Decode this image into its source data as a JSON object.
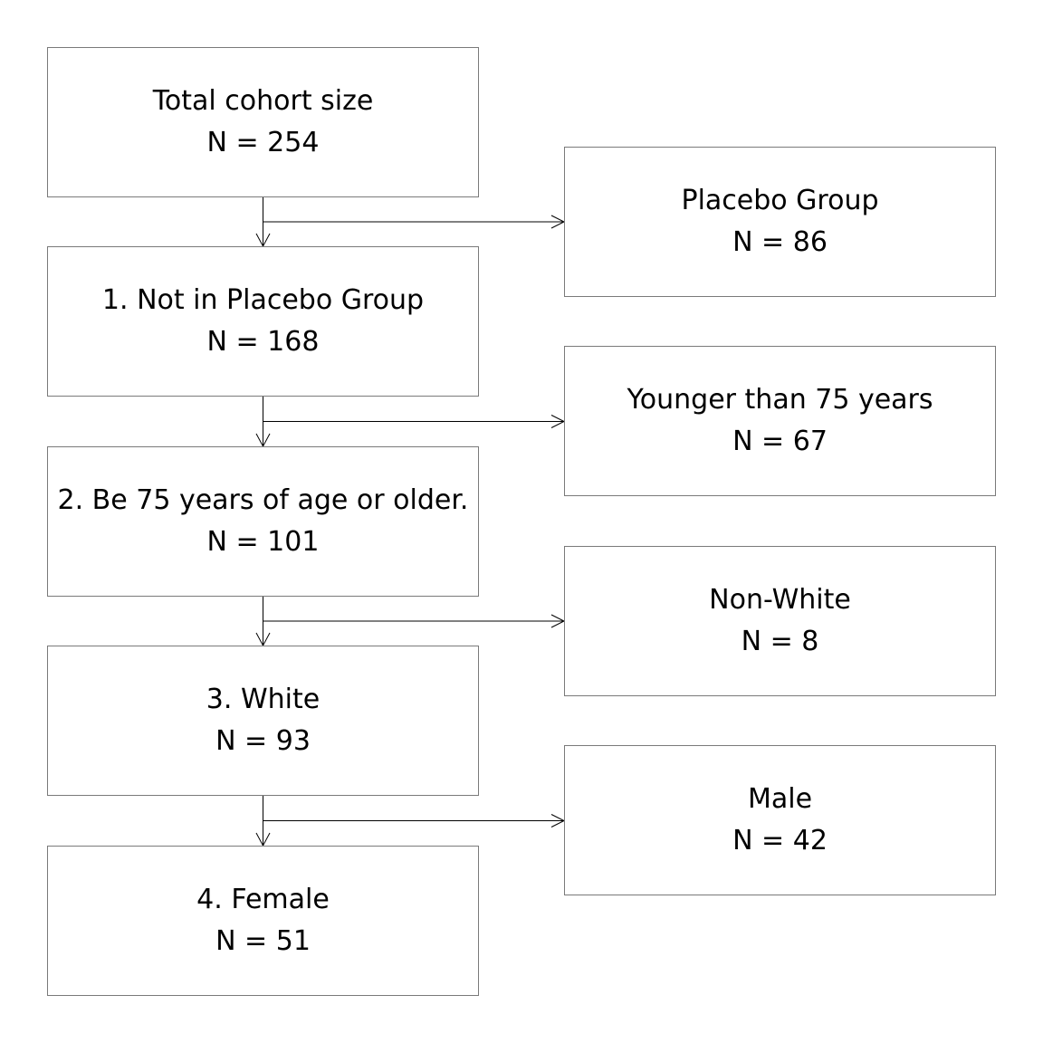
{
  "flowchart": {
    "main_steps": [
      {
        "label": "Total cohort size",
        "count": "N = 254"
      },
      {
        "label": "1. Not in Placebo Group",
        "count": "N = 168"
      },
      {
        "label": "2. Be 75 years of age or older.",
        "count": "N = 101"
      },
      {
        "label": "3. White",
        "count": "N = 93"
      },
      {
        "label": "4. Female",
        "count": "N = 51"
      }
    ],
    "excluded": [
      {
        "label": "Placebo Group",
        "count": "N = 86"
      },
      {
        "label": "Younger than 75 years",
        "count": "N = 67"
      },
      {
        "label": "Non-White",
        "count": "N = 8"
      },
      {
        "label": "Male",
        "count": "N = 42"
      }
    ],
    "colors": {
      "box_border": "#7a7a7a",
      "line": "#000000",
      "background": "#ffffff"
    }
  }
}
